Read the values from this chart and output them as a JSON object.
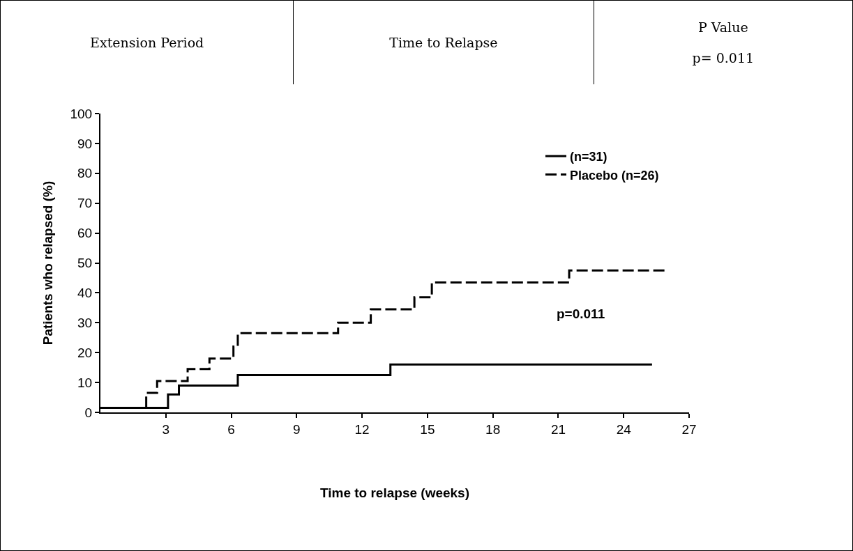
{
  "chart_data": {
    "type": "step",
    "xlabel": "Time to relapse (weeks)",
    "ylabel": "Patients who relapsed (%)",
    "annotations": [
      "Extension Period",
      "Time to Relapse",
      "P Value",
      "p= 0.011",
      "p=0.011"
    ],
    "series": [
      {
        "name": "(n=31)",
        "color": "#000000",
        "line_style": "solid",
        "x": [
          0,
          3.1,
          3.6,
          6.3,
          13.3,
          25.3
        ],
        "values": [
          1.5,
          6,
          9,
          12.5,
          16,
          16
        ]
      },
      {
        "name": "Placebo (n=26)",
        "color": "#000000",
        "line_style": "dashed",
        "x": [
          0,
          2.1,
          2.6,
          4.0,
          5.0,
          6.1,
          6.3,
          10.9,
          12.4,
          14.4,
          15.2,
          21.5,
          26.0
        ],
        "values": [
          1.5,
          6.5,
          10.5,
          14.5,
          18,
          22,
          26.5,
          30,
          34.5,
          38.5,
          43.5,
          47.5,
          47.5
        ]
      }
    ],
    "xlim": [
      0,
      27
    ],
    "xticks": [
      3,
      6,
      9,
      12,
      15,
      18,
      21,
      24,
      27
    ],
    "ylim": [
      0,
      100
    ],
    "yticks": [
      0,
      10,
      20,
      30,
      40,
      50,
      60,
      70,
      80,
      90,
      100
    ],
    "grid": false,
    "legend": "top right",
    "marker": "none"
  }
}
